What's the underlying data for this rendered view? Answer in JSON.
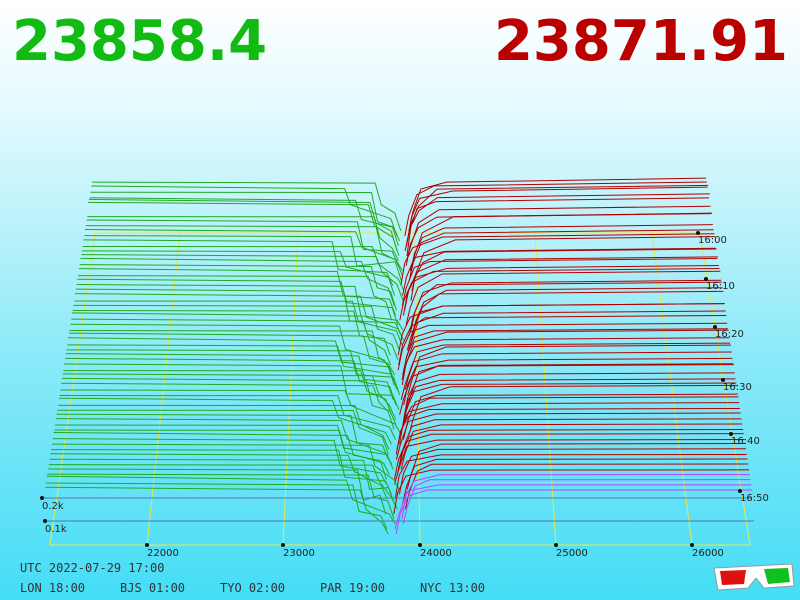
{
  "prices": {
    "bid": "23858.4",
    "ask": "23871.91"
  },
  "axis": {
    "price_ticks": [
      "22000",
      "23000",
      "24000",
      "25000",
      "26000"
    ],
    "time_ticks": [
      "16:00",
      "16:10",
      "16:20",
      "16:30",
      "16:40",
      "16:50"
    ],
    "volume_ticks": [
      "0.2k",
      "0.1k"
    ]
  },
  "footer": {
    "utc": "UTC 2022-07-29 17:00",
    "zones": [
      "LON 18:00",
      "BJS 01:00",
      "TYO 02:00",
      "PAR 19:00",
      "NYC 13:00"
    ]
  }
}
